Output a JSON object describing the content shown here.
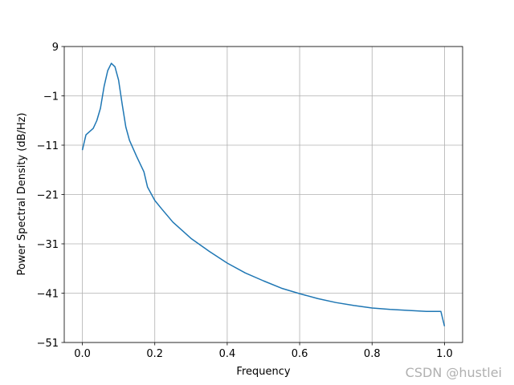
{
  "chart_data": {
    "type": "line",
    "xlabel": "Frequency",
    "ylabel": "Power Spectral Density (dB/Hz)",
    "watermark": "CSDN @hustlei",
    "x": [
      0,
      0.01,
      0.03,
      0.04,
      0.05,
      0.06,
      0.07,
      0.08,
      0.09,
      0.1,
      0.11,
      0.12,
      0.13,
      0.15,
      0.17,
      0.18,
      0.2,
      0.22,
      0.25,
      0.3,
      0.35,
      0.4,
      0.45,
      0.5,
      0.55,
      0.6,
      0.65,
      0.7,
      0.75,
      0.8,
      0.85,
      0.9,
      0.95,
      0.99,
      1.0
    ],
    "series": [
      {
        "name": "PSD",
        "color": "#1f77b4",
        "values": [
          -12,
          -8.9,
          -7.6,
          -6,
          -3.5,
          0.9,
          4.1,
          5.6,
          4.9,
          2.2,
          -2.7,
          -7.3,
          -10,
          -13.3,
          -16.4,
          -19.5,
          -22.2,
          -24,
          -26.6,
          -29.9,
          -32.5,
          -34.9,
          -36.9,
          -38.5,
          -40,
          -41.1,
          -42.1,
          -42.9,
          -43.5,
          -44,
          -44.3,
          -44.5,
          -44.7,
          -44.7,
          -47.7
        ]
      }
    ],
    "xlim": [
      -0.05,
      1.05
    ],
    "ylim": [
      -51,
      9
    ],
    "xticks": [
      {
        "value": 0,
        "label": "0.0"
      },
      0.2,
      0.4,
      0.6,
      0.8,
      {
        "value": 1,
        "label": "1.0"
      }
    ],
    "yticks": [
      {
        "value": -51,
        "label": "−51"
      },
      {
        "value": -41,
        "label": "−41"
      },
      {
        "value": -31,
        "label": "−31"
      },
      {
        "value": -21,
        "label": "−21"
      },
      {
        "value": -11,
        "label": "−11"
      },
      {
        "value": -1,
        "label": "−1"
      },
      9
    ],
    "grid": true
  }
}
